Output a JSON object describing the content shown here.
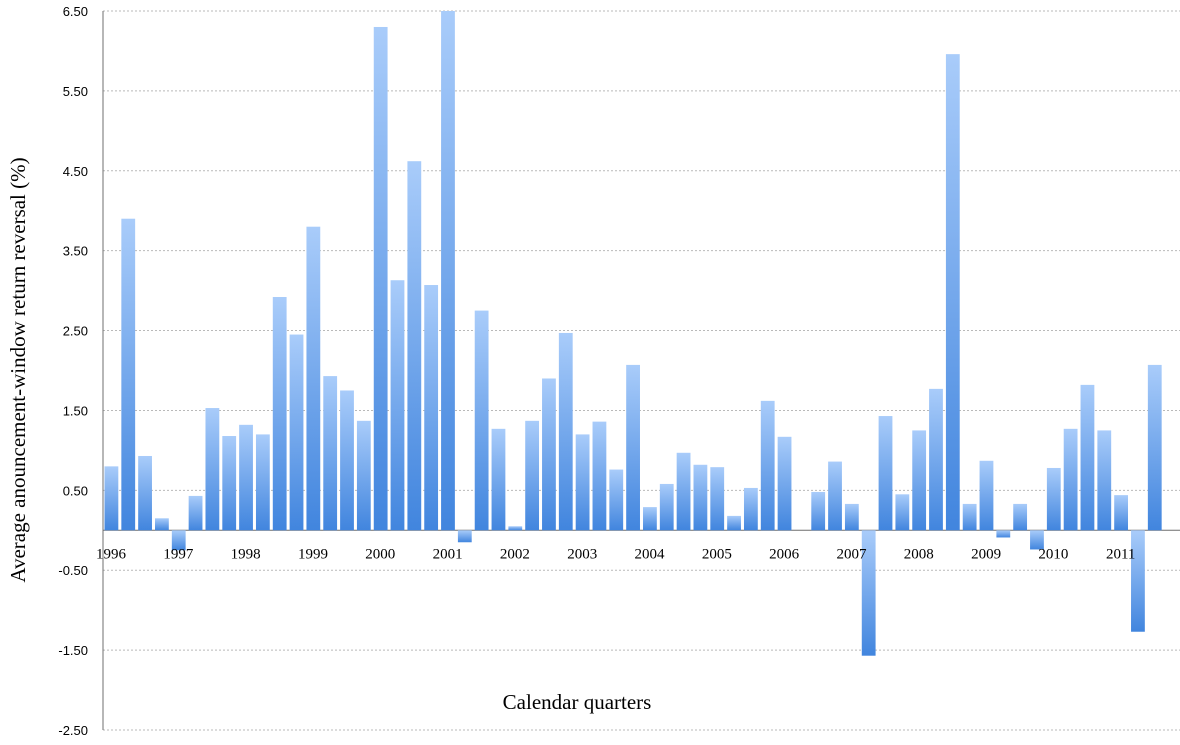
{
  "chart_data": {
    "type": "bar",
    "title": "",
    "xlabel": "Calendar quarters",
    "ylabel": "Average anouncement-window return reversal (%)",
    "ylim": [
      -2.5,
      6.5
    ],
    "yticks": [
      -2.5,
      -1.5,
      -0.5,
      0.5,
      1.5,
      2.5,
      3.5,
      4.5,
      5.5,
      6.5
    ],
    "ytick_labels": [
      "-2.50",
      "-1.50",
      "-0.50",
      "0.50",
      "1.50",
      "2.50",
      "3.50",
      "4.50",
      "5.50",
      "6.50"
    ],
    "grid": true,
    "legend": "none",
    "year_labels": [
      "1996",
      "1997",
      "1998",
      "1999",
      "2000",
      "2001",
      "2002",
      "2003",
      "2004",
      "2005",
      "2006",
      "2007",
      "2008",
      "2009",
      "2010",
      "2011"
    ],
    "categories": [
      "1996Q1",
      "1996Q2",
      "1996Q3",
      "1996Q4",
      "1997Q1",
      "1997Q2",
      "1997Q3",
      "1997Q4",
      "1998Q1",
      "1998Q2",
      "1998Q3",
      "1998Q4",
      "1999Q1",
      "1999Q2",
      "1999Q3",
      "1999Q4",
      "2000Q1",
      "2000Q2",
      "2000Q3",
      "2000Q4",
      "2001Q1",
      "2001Q2",
      "2001Q3",
      "2001Q4",
      "2002Q1",
      "2002Q2",
      "2002Q3",
      "2002Q4",
      "2003Q1",
      "2003Q2",
      "2003Q3",
      "2003Q4",
      "2004Q1",
      "2004Q2",
      "2004Q3",
      "2004Q4",
      "2005Q1",
      "2005Q2",
      "2005Q3",
      "2005Q4",
      "2006Q1",
      "2006Q2",
      "2006Q3",
      "2006Q4",
      "2007Q1",
      "2007Q2",
      "2007Q3",
      "2007Q4",
      "2008Q1",
      "2008Q2",
      "2008Q3",
      "2008Q4",
      "2009Q1",
      "2009Q2",
      "2009Q3",
      "2009Q4",
      "2010Q1",
      "2010Q2",
      "2010Q3",
      "2010Q4",
      "2011Q1",
      "2011Q2",
      "2011Q3",
      "2011Q4"
    ],
    "values": [
      0.8,
      3.9,
      0.93,
      0.15,
      -0.25,
      0.43,
      1.53,
      1.18,
      1.32,
      1.2,
      2.92,
      2.45,
      3.8,
      1.93,
      1.75,
      1.37,
      6.3,
      3.13,
      4.62,
      3.07,
      6.5,
      -0.15,
      2.75,
      1.27,
      0.05,
      1.37,
      1.9,
      2.47,
      1.2,
      1.36,
      0.76,
      2.07,
      0.29,
      0.58,
      0.97,
      0.82,
      0.79,
      0.18,
      0.53,
      1.62,
      1.17,
      0.0,
      0.48,
      0.86,
      0.33,
      -1.57,
      1.43,
      0.45,
      1.25,
      1.77,
      5.96,
      0.33,
      0.87,
      -0.09,
      0.33,
      -0.24,
      0.78,
      1.27,
      1.82,
      1.25,
      0.44,
      -1.27,
      2.07,
      0.0
    ],
    "colors": {
      "bar_light": "#a9ccfa",
      "bar_dark": "#4185de",
      "grid": "#b9b9b9",
      "axis": "#6f6f6f"
    }
  }
}
